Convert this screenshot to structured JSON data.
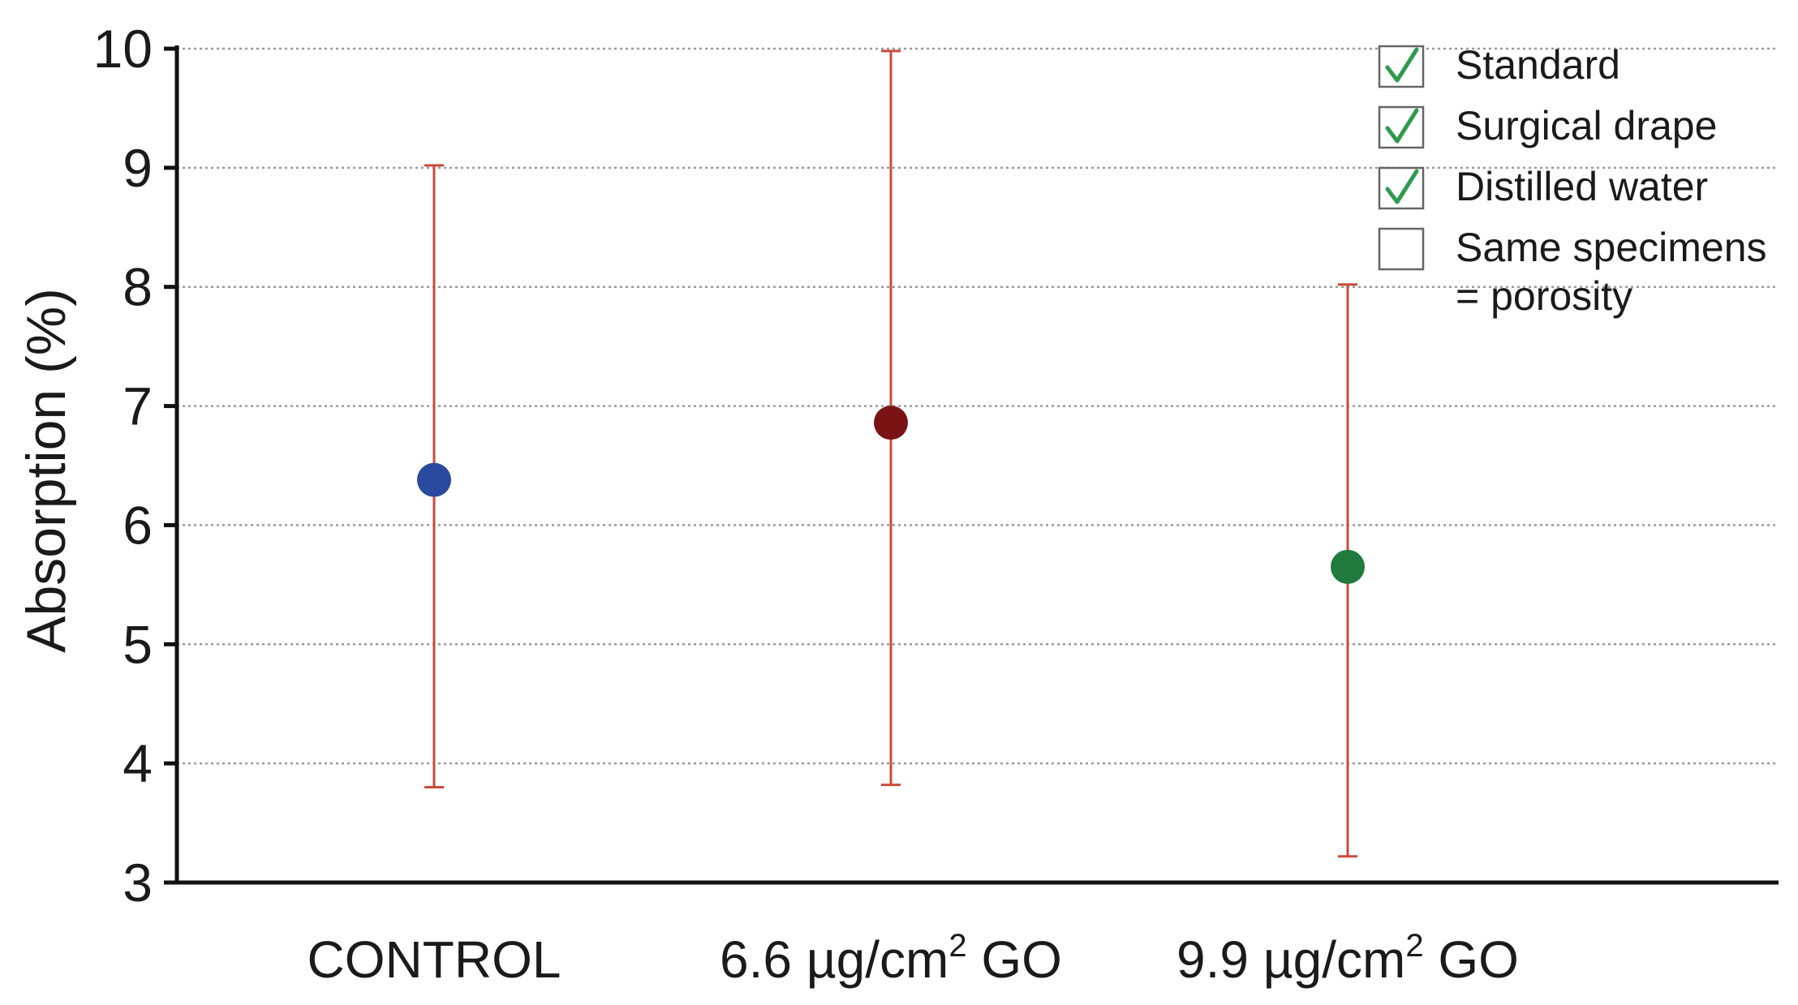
{
  "chart_data": {
    "type": "scatter",
    "title": "",
    "xlabel": "",
    "ylabel": "Absorption (%)",
    "ylim": [
      3,
      10
    ],
    "yticks": [
      "3",
      "4",
      "5",
      "6",
      "7",
      "8",
      "9",
      "10"
    ],
    "grid": true,
    "categories": [
      {
        "base": "CONTROL",
        "sup": "",
        "suffix": ""
      },
      {
        "base": "6.6 µg/cm",
        "sup": "2",
        "suffix": " GO"
      },
      {
        "base": "9.9 µg/cm",
        "sup": "2",
        "suffix": " GO"
      }
    ],
    "points": [
      {
        "category": "CONTROL",
        "mean": 6.38,
        "low": 3.8,
        "high": 9.02,
        "color": "#2a4a9e"
      },
      {
        "category": "6.6 µg/cm2 GO",
        "mean": 6.86,
        "low": 3.82,
        "high": 9.98,
        "color": "#7a1414"
      },
      {
        "category": "9.9 µg/cm2 GO",
        "mean": 5.65,
        "low": 3.22,
        "high": 8.02,
        "color": "#1f7a3c"
      }
    ],
    "error_bar_color": "#cc4b3c",
    "legend": {
      "position": "top-right",
      "items": [
        {
          "label": "Standard",
          "checked": true
        },
        {
          "label": "Surgical drape",
          "checked": true
        },
        {
          "label": "Distilled water",
          "checked": true
        },
        {
          "label": "Same specimens",
          "label2": "= porosity",
          "checked": false
        }
      ],
      "check_color": "#2e9a4e"
    }
  }
}
